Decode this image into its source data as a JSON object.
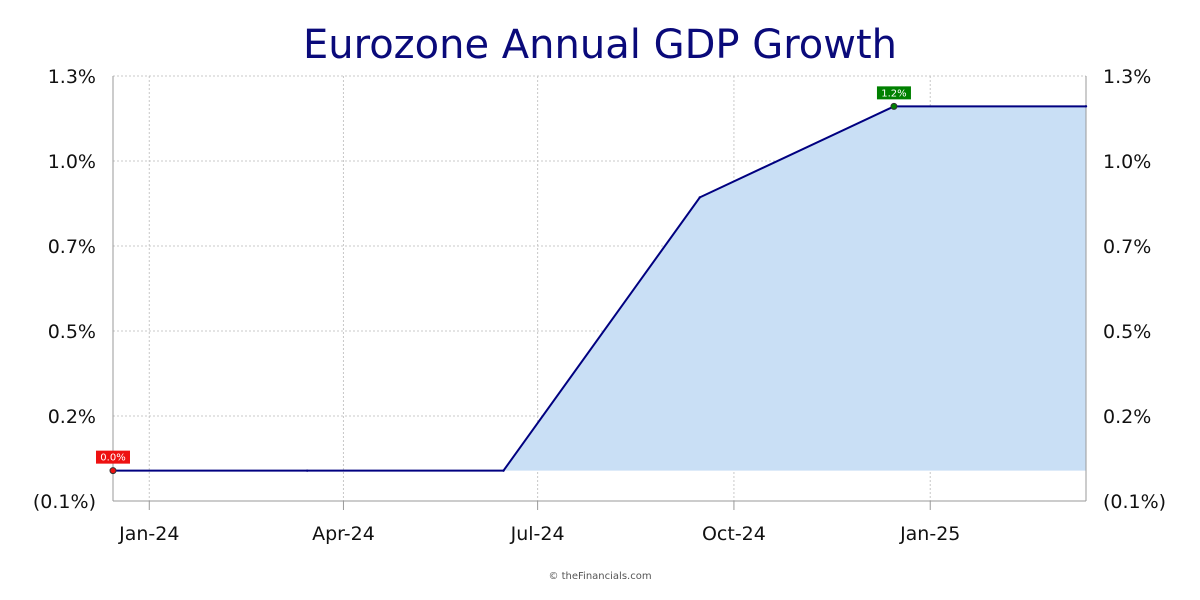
{
  "chart_data": {
    "type": "area",
    "title": "Eurozone Annual GDP Growth",
    "xlabel": "",
    "ylabel": "",
    "x": [
      "2023-12",
      "2024-03",
      "2024-06",
      "2024-09",
      "2024-12",
      "2025-03"
    ],
    "values": [
      0.0,
      0.0,
      0.0,
      0.9,
      1.2,
      1.2
    ],
    "x_tick_labels": [
      "Jan-24",
      "Apr-24",
      "Jul-24",
      "Oct-24",
      "Jan-25"
    ],
    "y_tick_labels": [
      "(0.1%)",
      "0.2%",
      "0.5%",
      "0.7%",
      "1.0%",
      "1.3%"
    ],
    "ylim": [
      -0.1,
      1.3
    ],
    "grid": true,
    "y_axis_both_sides": true,
    "annotations": [
      {
        "text": "0.0%",
        "x": "2023-12",
        "value": 0.0,
        "kind": "min"
      },
      {
        "text": "1.2%",
        "x": "2024-12",
        "value": 1.2,
        "kind": "max"
      }
    ],
    "credit": "© theFinancials.com",
    "colors": {
      "line": "#000080",
      "fill": "#c9dff5",
      "title": "#0a0a7a",
      "min_label": "#ee1111",
      "max_label": "#008000"
    }
  }
}
